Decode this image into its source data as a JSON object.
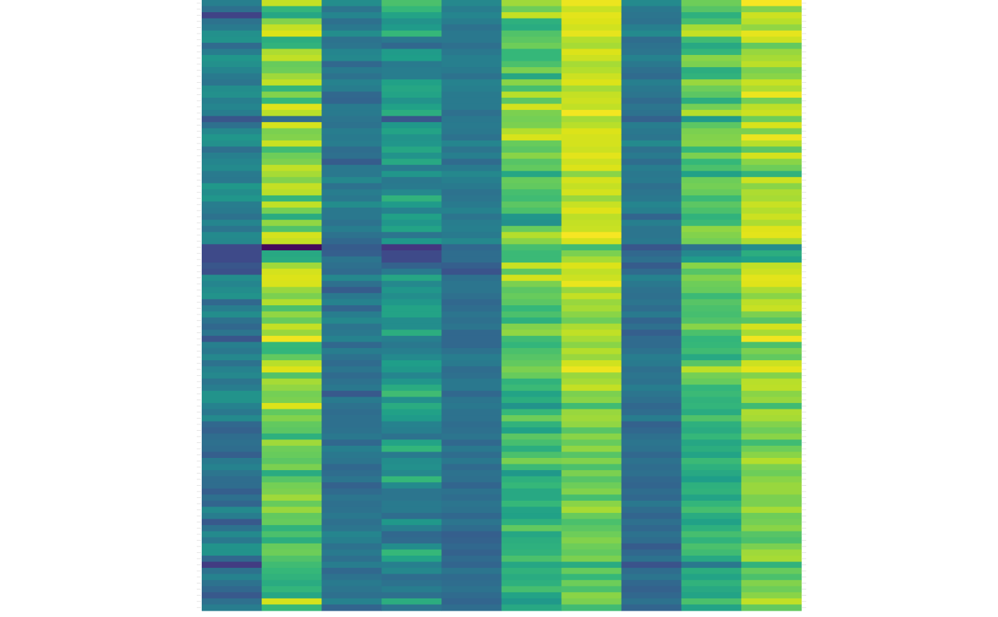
{
  "chart_data": {
    "type": "heatmap",
    "title": "",
    "xlabel": "",
    "ylabel": "",
    "colormap": "viridis",
    "value_range": [
      0,
      1
    ],
    "n_columns": 10,
    "n_rows": 100,
    "x_ticks_visible": false,
    "y_ticks_visible": false,
    "gridlines": false,
    "legend": "none",
    "column_profiles": [
      [
        0.39,
        0.33,
        0.18,
        0.34,
        0.37,
        0.45,
        0.46,
        0.31,
        0.38,
        0.47,
        0.45,
        0.41,
        0.37,
        0.35,
        0.44,
        0.45,
        0.39,
        0.41,
        0.38,
        0.24,
        0.33,
        0.42,
        0.47,
        0.45,
        0.33,
        0.39,
        0.41,
        0.43,
        0.37,
        0.36,
        0.48,
        0.44,
        0.47,
        0.38,
        0.37,
        0.34,
        0.41,
        0.35,
        0.43,
        0.42,
        0.2,
        0.2,
        0.2,
        0.24,
        0.22,
        0.44,
        0.41,
        0.44,
        0.46,
        0.3,
        0.38,
        0.44,
        0.34,
        0.3,
        0.35,
        0.24,
        0.39,
        0.36,
        0.42,
        0.34,
        0.4,
        0.42,
        0.35,
        0.38,
        0.46,
        0.46,
        0.4,
        0.36,
        0.43,
        0.3,
        0.28,
        0.32,
        0.33,
        0.32,
        0.27,
        0.37,
        0.4,
        0.35,
        0.32,
        0.32,
        0.27,
        0.33,
        0.29,
        0.43,
        0.38,
        0.25,
        0.34,
        0.43,
        0.36,
        0.46,
        0.46,
        0.3,
        0.16,
        0.34,
        0.4,
        0.34,
        0.3,
        0.25,
        0.33,
        0.38
      ],
      [
        0.84,
        0.59,
        0.53,
        0.73,
        0.84,
        0.9,
        0.56,
        0.58,
        0.79,
        0.83,
        0.69,
        0.7,
        0.77,
        0.83,
        0.59,
        0.73,
        0.6,
        0.91,
        0.81,
        0.32,
        0.88,
        0.72,
        0.73,
        0.85,
        0.62,
        0.7,
        0.72,
        0.83,
        0.78,
        0.73,
        0.84,
        0.81,
        0.59,
        0.83,
        0.71,
        0.55,
        0.75,
        0.65,
        0.88,
        0.84,
        0.02,
        0.54,
        0.55,
        0.77,
        0.88,
        0.9,
        0.89,
        0.76,
        0.72,
        0.8,
        0.64,
        0.75,
        0.69,
        0.84,
        0.76,
        0.96,
        0.6,
        0.59,
        0.68,
        0.81,
        0.9,
        0.65,
        0.78,
        0.75,
        0.71,
        0.72,
        0.9,
        0.68,
        0.73,
        0.68,
        0.67,
        0.57,
        0.77,
        0.7,
        0.69,
        0.67,
        0.72,
        0.55,
        0.66,
        0.71,
        0.72,
        0.77,
        0.69,
        0.76,
        0.68,
        0.69,
        0.58,
        0.64,
        0.56,
        0.69,
        0.7,
        0.65,
        0.62,
        0.6,
        0.58,
        0.55,
        0.59,
        0.53,
        0.88,
        0.6
      ],
      [
        0.44,
        0.35,
        0.41,
        0.33,
        0.36,
        0.44,
        0.34,
        0.35,
        0.41,
        0.42,
        0.3,
        0.37,
        0.34,
        0.4,
        0.38,
        0.3,
        0.29,
        0.37,
        0.37,
        0.35,
        0.34,
        0.38,
        0.37,
        0.38,
        0.32,
        0.33,
        0.26,
        0.36,
        0.36,
        0.42,
        0.34,
        0.38,
        0.36,
        0.44,
        0.36,
        0.36,
        0.34,
        0.38,
        0.34,
        0.3,
        0.26,
        0.27,
        0.35,
        0.33,
        0.31,
        0.42,
        0.33,
        0.26,
        0.36,
        0.4,
        0.29,
        0.38,
        0.42,
        0.35,
        0.36,
        0.4,
        0.3,
        0.38,
        0.34,
        0.31,
        0.35,
        0.31,
        0.34,
        0.36,
        0.25,
        0.37,
        0.34,
        0.32,
        0.33,
        0.33,
        0.34,
        0.36,
        0.3,
        0.39,
        0.36,
        0.35,
        0.3,
        0.32,
        0.35,
        0.28,
        0.31,
        0.35,
        0.33,
        0.34,
        0.36,
        0.33,
        0.35,
        0.41,
        0.39,
        0.34,
        0.37,
        0.33,
        0.38,
        0.3,
        0.34,
        0.37,
        0.35,
        0.33,
        0.4,
        0.29
      ],
      [
        0.64,
        0.6,
        0.52,
        0.46,
        0.49,
        0.6,
        0.36,
        0.3,
        0.49,
        0.5,
        0.37,
        0.38,
        0.38,
        0.51,
        0.53,
        0.52,
        0.46,
        0.51,
        0.56,
        0.24,
        0.48,
        0.52,
        0.46,
        0.47,
        0.53,
        0.46,
        0.54,
        0.37,
        0.47,
        0.36,
        0.37,
        0.42,
        0.58,
        0.49,
        0.4,
        0.51,
        0.47,
        0.52,
        0.35,
        0.48,
        0.14,
        0.2,
        0.2,
        0.28,
        0.37,
        0.53,
        0.42,
        0.47,
        0.44,
        0.48,
        0.52,
        0.52,
        0.44,
        0.44,
        0.56,
        0.39,
        0.36,
        0.39,
        0.43,
        0.5,
        0.48,
        0.41,
        0.47,
        0.55,
        0.62,
        0.45,
        0.55,
        0.51,
        0.49,
        0.4,
        0.39,
        0.34,
        0.52,
        0.59,
        0.37,
        0.44,
        0.45,
        0.42,
        0.6,
        0.43,
        0.35,
        0.35,
        0.37,
        0.37,
        0.32,
        0.48,
        0.39,
        0.3,
        0.31,
        0.44,
        0.6,
        0.52,
        0.39,
        0.42,
        0.32,
        0.34,
        0.38,
        0.33,
        0.56,
        0.35
      ],
      [
        0.42,
        0.38,
        0.41,
        0.38,
        0.34,
        0.36,
        0.36,
        0.33,
        0.36,
        0.39,
        0.39,
        0.37,
        0.34,
        0.4,
        0.39,
        0.37,
        0.37,
        0.37,
        0.33,
        0.36,
        0.37,
        0.36,
        0.34,
        0.41,
        0.35,
        0.39,
        0.31,
        0.37,
        0.42,
        0.39,
        0.37,
        0.34,
        0.35,
        0.37,
        0.4,
        0.35,
        0.38,
        0.39,
        0.37,
        0.42,
        0.3,
        0.32,
        0.32,
        0.27,
        0.23,
        0.33,
        0.35,
        0.35,
        0.33,
        0.3,
        0.32,
        0.35,
        0.33,
        0.35,
        0.3,
        0.3,
        0.3,
        0.34,
        0.38,
        0.37,
        0.32,
        0.33,
        0.36,
        0.36,
        0.3,
        0.35,
        0.36,
        0.34,
        0.34,
        0.32,
        0.33,
        0.35,
        0.3,
        0.36,
        0.32,
        0.36,
        0.31,
        0.34,
        0.33,
        0.29,
        0.34,
        0.32,
        0.35,
        0.34,
        0.3,
        0.35,
        0.32,
        0.27,
        0.28,
        0.3,
        0.28,
        0.31,
        0.29,
        0.35,
        0.31,
        0.32,
        0.34,
        0.31,
        0.29,
        0.32
      ],
      [
        0.77,
        0.7,
        0.84,
        0.57,
        0.55,
        0.65,
        0.67,
        0.7,
        0.6,
        0.6,
        0.64,
        0.72,
        0.53,
        0.74,
        0.63,
        0.81,
        0.67,
        0.88,
        0.72,
        0.71,
        0.72,
        0.8,
        0.89,
        0.69,
        0.67,
        0.74,
        0.66,
        0.68,
        0.53,
        0.69,
        0.68,
        0.63,
        0.62,
        0.67,
        0.64,
        0.47,
        0.45,
        0.69,
        0.8,
        0.74,
        0.63,
        0.61,
        0.61,
        0.85,
        0.67,
        0.88,
        0.72,
        0.67,
        0.69,
        0.67,
        0.6,
        0.64,
        0.57,
        0.73,
        0.75,
        0.62,
        0.59,
        0.64,
        0.66,
        0.68,
        0.72,
        0.69,
        0.58,
        0.61,
        0.52,
        0.56,
        0.46,
        0.6,
        0.7,
        0.58,
        0.51,
        0.67,
        0.63,
        0.56,
        0.64,
        0.72,
        0.61,
        0.48,
        0.57,
        0.6,
        0.54,
        0.54,
        0.6,
        0.52,
        0.51,
        0.57,
        0.68,
        0.53,
        0.56,
        0.57,
        0.58,
        0.64,
        0.53,
        0.58,
        0.55,
        0.57,
        0.63,
        0.52,
        0.48,
        0.54
      ],
      [
        0.95,
        0.85,
        0.92,
        0.9,
        0.87,
        0.93,
        0.8,
        0.78,
        0.9,
        0.86,
        0.78,
        0.8,
        0.86,
        0.9,
        0.78,
        0.84,
        0.86,
        0.83,
        0.97,
        0.78,
        0.81,
        0.9,
        0.88,
        0.88,
        0.86,
        0.92,
        0.86,
        0.9,
        0.74,
        0.88,
        0.84,
        0.88,
        0.76,
        0.85,
        0.91,
        0.82,
        0.84,
        0.85,
        0.98,
        0.88,
        0.62,
        0.72,
        0.78,
        0.9,
        0.83,
        0.86,
        0.94,
        0.76,
        0.84,
        0.76,
        0.78,
        0.74,
        0.7,
        0.79,
        0.83,
        0.78,
        0.74,
        0.8,
        0.76,
        0.87,
        0.95,
        0.76,
        0.78,
        0.84,
        0.72,
        0.74,
        0.62,
        0.76,
        0.77,
        0.75,
        0.66,
        0.74,
        0.69,
        0.75,
        0.66,
        0.73,
        0.64,
        0.72,
        0.66,
        0.7,
        0.73,
        0.63,
        0.74,
        0.78,
        0.69,
        0.64,
        0.67,
        0.7,
        0.73,
        0.7,
        0.68,
        0.72,
        0.55,
        0.69,
        0.6,
        0.7,
        0.64,
        0.74,
        0.72,
        0.62
      ],
      [
        0.43,
        0.36,
        0.35,
        0.34,
        0.39,
        0.43,
        0.32,
        0.34,
        0.35,
        0.4,
        0.36,
        0.33,
        0.31,
        0.39,
        0.36,
        0.35,
        0.31,
        0.35,
        0.34,
        0.28,
        0.38,
        0.36,
        0.35,
        0.43,
        0.34,
        0.37,
        0.32,
        0.38,
        0.36,
        0.37,
        0.33,
        0.35,
        0.36,
        0.41,
        0.39,
        0.29,
        0.39,
        0.35,
        0.35,
        0.36,
        0.24,
        0.3,
        0.33,
        0.26,
        0.31,
        0.4,
        0.36,
        0.34,
        0.33,
        0.35,
        0.32,
        0.37,
        0.29,
        0.33,
        0.27,
        0.31,
        0.31,
        0.34,
        0.38,
        0.37,
        0.33,
        0.35,
        0.34,
        0.38,
        0.35,
        0.33,
        0.3,
        0.32,
        0.38,
        0.28,
        0.3,
        0.33,
        0.35,
        0.34,
        0.3,
        0.34,
        0.32,
        0.33,
        0.3,
        0.29,
        0.32,
        0.3,
        0.36,
        0.32,
        0.29,
        0.33,
        0.3,
        0.34,
        0.32,
        0.26,
        0.3,
        0.34,
        0.23,
        0.32,
        0.35,
        0.3,
        0.28,
        0.3,
        0.34,
        0.29
      ],
      [
        0.7,
        0.66,
        0.57,
        0.63,
        0.78,
        0.84,
        0.62,
        0.54,
        0.59,
        0.74,
        0.72,
        0.56,
        0.58,
        0.76,
        0.7,
        0.67,
        0.56,
        0.71,
        0.8,
        0.49,
        0.67,
        0.72,
        0.73,
        0.74,
        0.6,
        0.72,
        0.6,
        0.64,
        0.51,
        0.7,
        0.71,
        0.69,
        0.61,
        0.67,
        0.64,
        0.58,
        0.61,
        0.75,
        0.73,
        0.71,
        0.34,
        0.42,
        0.49,
        0.74,
        0.66,
        0.73,
        0.7,
        0.69,
        0.61,
        0.66,
        0.64,
        0.63,
        0.65,
        0.74,
        0.64,
        0.59,
        0.6,
        0.62,
        0.54,
        0.66,
        0.82,
        0.71,
        0.69,
        0.59,
        0.61,
        0.58,
        0.59,
        0.55,
        0.65,
        0.57,
        0.55,
        0.6,
        0.53,
        0.56,
        0.52,
        0.61,
        0.57,
        0.54,
        0.5,
        0.57,
        0.58,
        0.52,
        0.59,
        0.63,
        0.55,
        0.51,
        0.57,
        0.63,
        0.58,
        0.64,
        0.62,
        0.54,
        0.36,
        0.56,
        0.52,
        0.58,
        0.54,
        0.52,
        0.64,
        0.52
      ],
      [
        0.98,
        0.73,
        0.86,
        0.81,
        0.75,
        0.93,
        0.86,
        0.68,
        0.76,
        0.78,
        0.82,
        0.72,
        0.74,
        0.85,
        0.79,
        0.95,
        0.71,
        0.82,
        0.86,
        0.7,
        0.89,
        0.72,
        0.95,
        0.81,
        0.67,
        0.88,
        0.74,
        0.7,
        0.58,
        0.86,
        0.74,
        0.79,
        0.78,
        0.85,
        0.8,
        0.86,
        0.79,
        0.91,
        0.92,
        0.79,
        0.44,
        0.56,
        0.51,
        0.83,
        0.86,
        0.92,
        0.91,
        0.79,
        0.74,
        0.82,
        0.85,
        0.72,
        0.66,
        0.88,
        0.78,
        0.96,
        0.64,
        0.72,
        0.68,
        0.86,
        0.92,
        0.73,
        0.81,
        0.82,
        0.74,
        0.76,
        0.62,
        0.79,
        0.78,
        0.73,
        0.7,
        0.74,
        0.62,
        0.7,
        0.74,
        0.8,
        0.72,
        0.7,
        0.74,
        0.76,
        0.76,
        0.72,
        0.72,
        0.78,
        0.7,
        0.71,
        0.74,
        0.66,
        0.64,
        0.72,
        0.77,
        0.78,
        0.58,
        0.69,
        0.64,
        0.73,
        0.7,
        0.74,
        0.83,
        0.68
      ]
    ]
  }
}
